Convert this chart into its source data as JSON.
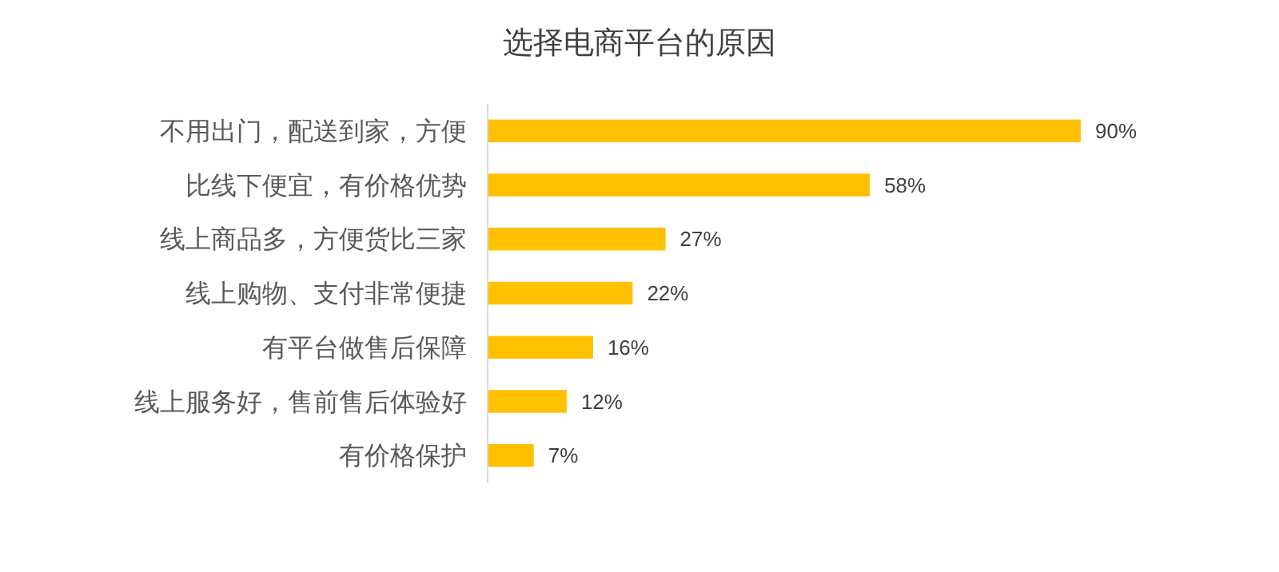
{
  "chart_data": {
    "type": "bar",
    "orientation": "horizontal",
    "title": "选择电商平台的原因",
    "categories": [
      "不用出门，配送到家，方便",
      "比线下便宜，有价格优势",
      "线上商品多，方便货比三家",
      "线上购物、支付非常便捷",
      "有平台做售后保障",
      "线上服务好，售前售后体验好",
      "有价格保护"
    ],
    "values": [
      90,
      58,
      27,
      22,
      16,
      12,
      7
    ],
    "value_labels": [
      "90%",
      "58%",
      "27%",
      "22%",
      "16%",
      "12%",
      "7%"
    ],
    "color": "#ffc000",
    "tick_labels": "y"
  }
}
